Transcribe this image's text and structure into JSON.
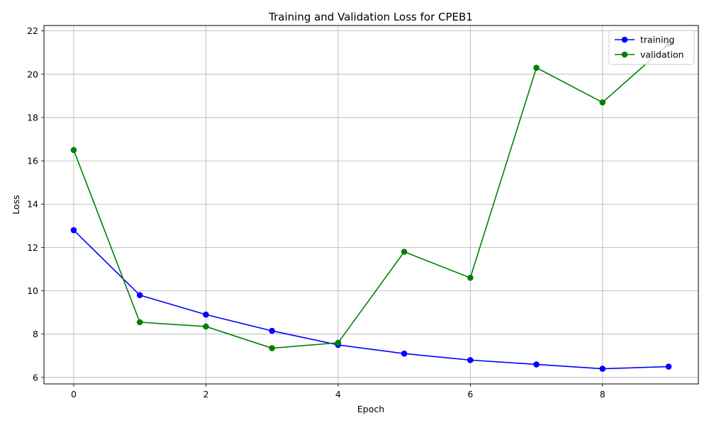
{
  "chart_data": {
    "type": "line",
    "title": "Training and Validation Loss for CPEB1",
    "xlabel": "Epoch",
    "ylabel": "Loss",
    "x": [
      0,
      1,
      2,
      3,
      4,
      5,
      6,
      7,
      8,
      9
    ],
    "xlim": [
      -0.45,
      9.45
    ],
    "ylim": [
      5.7,
      22.25
    ],
    "xticks": [
      0,
      2,
      4,
      6,
      8
    ],
    "yticks": [
      6,
      8,
      10,
      12,
      14,
      16,
      18,
      20,
      22
    ],
    "grid": true,
    "legend_position": "top-right",
    "series": [
      {
        "name": "training",
        "color": "#0000ff",
        "marker": "circle",
        "values": [
          12.8,
          9.8,
          8.9,
          8.15,
          7.5,
          7.1,
          6.8,
          6.6,
          6.4,
          6.5
        ]
      },
      {
        "name": "validation",
        "color": "#008000",
        "marker": "circle",
        "values": [
          16.5,
          8.55,
          8.35,
          7.35,
          7.6,
          11.8,
          10.6,
          20.3,
          18.7,
          21.4
        ]
      }
    ]
  }
}
